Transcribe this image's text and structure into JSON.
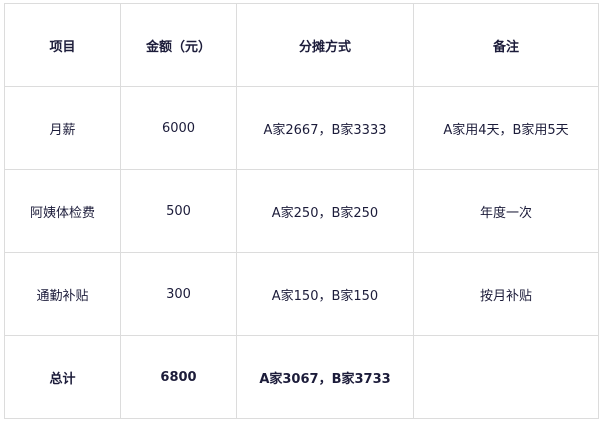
{
  "table": {
    "headers": [
      "项目",
      "金额（元）",
      "分摊方式",
      "备注"
    ],
    "rows": [
      [
        "月薪",
        "6000",
        "A家2667，B家3333",
        "A家用4天，B家用5天"
      ],
      [
        "阿姨体检费",
        "500",
        "A家250，B家250",
        "年度一次"
      ],
      [
        "通勤补贴",
        "300",
        "A家150，B家150",
        "按月补贴"
      ]
    ],
    "total": [
      "总计",
      "6800",
      "A家3067，B家3733",
      ""
    ]
  }
}
